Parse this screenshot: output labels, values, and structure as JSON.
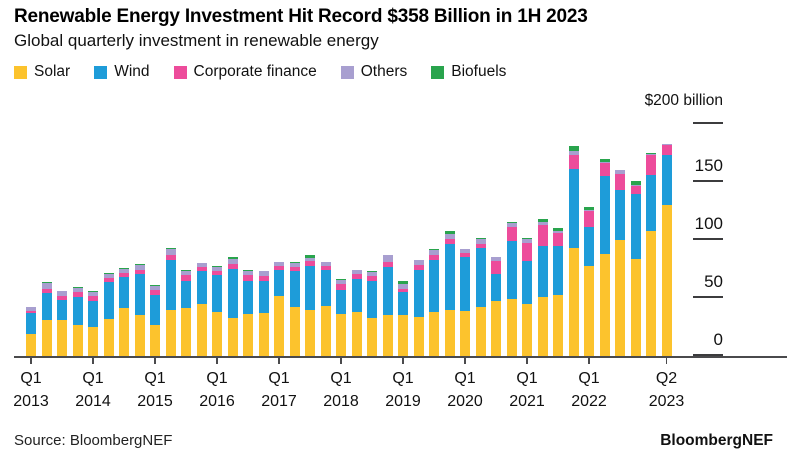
{
  "header": {
    "title": "Renewable Energy Investment Hit Record $358 Billion in 1H 2023",
    "subtitle": "Global quarterly investment in renewable energy"
  },
  "legend": {
    "items": [
      {
        "label": "Solar",
        "color": "#FCC32D"
      },
      {
        "label": "Wind",
        "color": "#1E9CD9"
      },
      {
        "label": "Corporate finance",
        "color": "#ED4C9B"
      },
      {
        "label": "Others",
        "color": "#A89FD0"
      },
      {
        "label": "Biofuels",
        "color": "#29A44D"
      }
    ]
  },
  "y_axis": {
    "top_label": "$200 billion",
    "max_value": 200,
    "ticks": [
      {
        "value": 150,
        "label": "150"
      },
      {
        "value": 100,
        "label": "100"
      },
      {
        "value": 50,
        "label": "50"
      },
      {
        "value": 0,
        "label": "0"
      }
    ]
  },
  "footer": {
    "source": "Source: BloombergNEF",
    "brand": "BloombergNEF"
  },
  "chart_data": {
    "type": "bar",
    "stacked": true,
    "title": "Global quarterly investment in renewable energy",
    "unit": "$ billion",
    "ylim": [
      0,
      200
    ],
    "legend_position": "top-left",
    "grid": false,
    "categories": [
      "Q1 2013",
      "Q2 2013",
      "Q3 2013",
      "Q4 2013",
      "Q1 2014",
      "Q2 2014",
      "Q3 2014",
      "Q4 2014",
      "Q1 2015",
      "Q2 2015",
      "Q3 2015",
      "Q4 2015",
      "Q1 2016",
      "Q2 2016",
      "Q3 2016",
      "Q4 2016",
      "Q1 2017",
      "Q2 2017",
      "Q3 2017",
      "Q4 2017",
      "Q1 2018",
      "Q2 2018",
      "Q3 2018",
      "Q4 2018",
      "Q1 2019",
      "Q2 2019",
      "Q3 2019",
      "Q4 2019",
      "Q1 2020",
      "Q2 2020",
      "Q3 2020",
      "Q4 2020",
      "Q1 2021",
      "Q2 2021",
      "Q3 2021",
      "Q4 2021",
      "Q1 2022",
      "Q2 2022",
      "Q3 2022",
      "Q4 2022",
      "Q1 2023",
      "Q2 2023"
    ],
    "series": [
      {
        "name": "Solar",
        "color": "#FCC32D",
        "values": [
          19,
          31,
          31,
          27,
          25,
          32,
          41,
          35,
          27,
          40,
          41,
          45,
          38,
          33,
          36,
          37,
          52,
          42,
          40,
          43,
          36,
          38,
          33,
          35,
          35,
          34,
          38,
          40,
          39,
          42,
          47,
          49,
          44.5,
          51,
          53,
          93,
          78,
          88,
          100,
          84,
          108,
          130
        ]
      },
      {
        "name": "Wind",
        "color": "#1E9CD9",
        "values": [
          18,
          23,
          17,
          24,
          22,
          32,
          27,
          36,
          26,
          43,
          24,
          28,
          32,
          42,
          29,
          28,
          22,
          31,
          38,
          31,
          21,
          28,
          32,
          42,
          20,
          40,
          45,
          57,
          46,
          51,
          24,
          50,
          37,
          44,
          41.5,
          68,
          33,
          67,
          43,
          56,
          48,
          43
        ]
      },
      {
        "name": "Corporate finance",
        "color": "#ED4C9B",
        "values": [
          1.5,
          4,
          4,
          4,
          4.5,
          3.5,
          3.5,
          3.5,
          3.5,
          4.5,
          4.5,
          3.5,
          3.5,
          4.5,
          5,
          4,
          3.5,
          3.5,
          3.5,
          3.5,
          5,
          4.5,
          4,
          4,
          3,
          4.5,
          4.5,
          4,
          3.5,
          4,
          10.5,
          12.5,
          16,
          18,
          12,
          12,
          14,
          11,
          14,
          7,
          17,
          9
        ]
      },
      {
        "name": "Others",
        "color": "#A89FD0",
        "values": [
          3.5,
          5,
          4,
          4,
          4,
          3.5,
          3.5,
          4,
          4,
          5,
          4,
          3.5,
          3.5,
          4,
          3.5,
          4,
          3.5,
          4,
          3,
          3.5,
          3.5,
          3.5,
          3.5,
          6,
          4,
          4,
          4,
          4,
          3.5,
          4,
          3.5,
          3.5,
          3.5,
          2.5,
          1.5,
          4,
          1,
          1,
          3,
          0.5,
          1.5,
          0.5
        ]
      },
      {
        "name": "Biofuels",
        "color": "#29A44D",
        "values": [
          0.5,
          0.5,
          0.5,
          0.5,
          0.5,
          0.5,
          0.5,
          0.5,
          0.5,
          0.5,
          0.5,
          0.5,
          0.5,
          1.5,
          0.5,
          0.5,
          0.5,
          0.5,
          2.5,
          0.5,
          0.5,
          0.5,
          0.5,
          0.5,
          3,
          0.5,
          0.5,
          3,
          0.5,
          0.5,
          0.5,
          0.5,
          0.5,
          3,
          2.5,
          4.5,
          2.5,
          2.5,
          0.5,
          3,
          0.5,
          0.5
        ]
      }
    ],
    "x_ticks": [
      {
        "index": 0,
        "line1": "Q1",
        "line2": "2013"
      },
      {
        "index": 4,
        "line1": "Q1",
        "line2": "2014"
      },
      {
        "index": 8,
        "line1": "Q1",
        "line2": "2015"
      },
      {
        "index": 12,
        "line1": "Q1",
        "line2": "2016"
      },
      {
        "index": 16,
        "line1": "Q1",
        "line2": "2017"
      },
      {
        "index": 20,
        "line1": "Q1",
        "line2": "2018"
      },
      {
        "index": 24,
        "line1": "Q1",
        "line2": "2019"
      },
      {
        "index": 28,
        "line1": "Q1",
        "line2": "2020"
      },
      {
        "index": 32,
        "line1": "Q1",
        "line2": "2021"
      },
      {
        "index": 36,
        "line1": "Q1",
        "line2": "2022"
      },
      {
        "index": 41,
        "line1": "Q2",
        "line2": "2023"
      }
    ]
  }
}
